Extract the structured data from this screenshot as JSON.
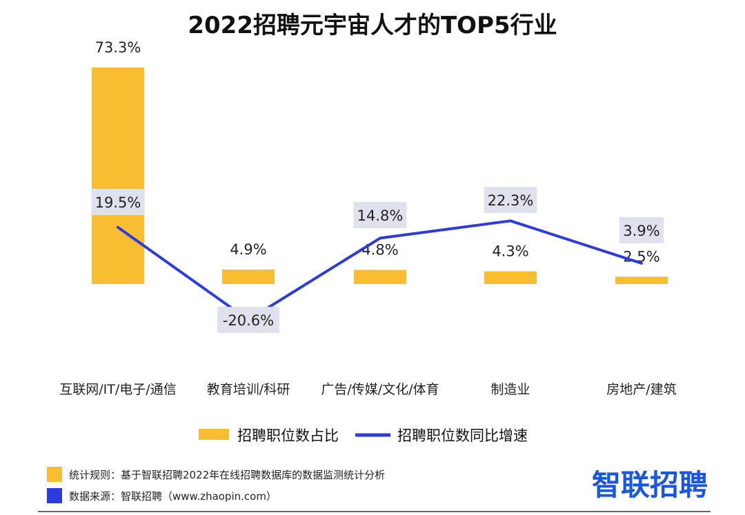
{
  "chart_data": {
    "type": "bar+line",
    "title": "2022招聘元宇宙人才的TOP5行业",
    "categories": [
      "互联网/IT/电子/通信",
      "教育培训/科研",
      "广告/传媒/文化/体育",
      "制造业",
      "房地产/建筑"
    ],
    "series": [
      {
        "name": "招聘职位数占比",
        "type": "bar",
        "values": [
          73.3,
          4.9,
          4.8,
          4.3,
          2.5
        ],
        "labels": [
          "73.3%",
          "4.9%",
          "4.8%",
          "4.3%",
          "2.5%"
        ],
        "color": "#f9bd32"
      },
      {
        "name": "招聘职位数同比增速",
        "type": "line",
        "values": [
          19.5,
          -20.6,
          14.8,
          22.3,
          3.9
        ],
        "labels": [
          "19.5%",
          "-20.6%",
          "14.8%",
          "22.3%",
          "3.9%"
        ],
        "color": "#2b3be0"
      }
    ],
    "legend_position": "bottom"
  },
  "footer": {
    "rule_text": "统计规则：基于智联招聘2022年在线招聘数据库的数据监测统计分析",
    "source_text": "数据来源：智联招聘（www.zhaopin.com）",
    "rule_color": "#f9bd32",
    "source_color": "#2b3be0"
  },
  "logo": {
    "text": "智联招聘",
    "color": "#1a56e0"
  },
  "colors": {
    "label_box": "#dfe1ec"
  }
}
